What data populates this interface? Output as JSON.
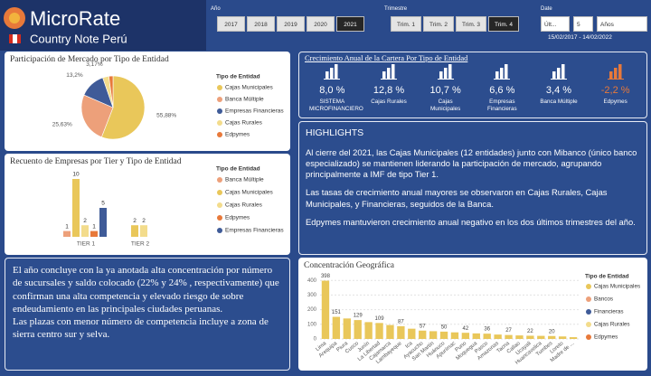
{
  "header": {
    "brand": "MicroRate",
    "subtitle": "Country Note Perú"
  },
  "filters": {
    "year_label": "Año",
    "years": [
      "2017",
      "2018",
      "2019",
      "2020",
      "2021"
    ],
    "year_selected": 4,
    "quarter_label": "Trimestre",
    "quarters": [
      "Trim. 1",
      "Trim. 2",
      "Trim. 3",
      "Trim. 4"
    ],
    "quarter_selected": 3,
    "date_label": "Date",
    "date_mode": "Últ...",
    "date_count": "5",
    "date_unit": "Años",
    "date_range": "15/02/2017 - 14/02/2022"
  },
  "growth": {
    "title": "Crecimiento Anual de la Cartera Por Tipo de Entidad",
    "items": [
      {
        "value": "8,0 %",
        "label": "SISTEMA MICROFINANCIERO",
        "color": "#ffffff"
      },
      {
        "value": "12,8 %",
        "label": "Cajas Rurales",
        "color": "#ffffff"
      },
      {
        "value": "10,7 %",
        "label": "Cajas Municipales",
        "color": "#ffffff"
      },
      {
        "value": "6,6 %",
        "label": "Empresas Financieras",
        "color": "#ffffff"
      },
      {
        "value": "3,4 %",
        "label": "Banca Múltiple",
        "color": "#ffffff"
      },
      {
        "value": "-2,2 %",
        "label": "Edpymes",
        "color": "#e8793a"
      }
    ]
  },
  "highlights": {
    "title": "HIGHLIGHTS",
    "paragraphs": [
      "Al cierre del 2021, las Cajas Municipales (12 entidades) junto con Mibanco (único banco especializado) se mantienen liderando la participación de mercado, agrupando principalmente a IMF de tipo Tier 1.",
      "Las tasas de crecimiento anual mayores se observaron en Cajas Rurales, Cajas Municipales, y Financieras, seguidos de la Banca.",
      "Edpymes mantuvieron crecimiento anual negativo en los dos últimos trimestres del año."
    ]
  },
  "note": {
    "paragraphs": [
      "El año concluye con la ya anotada alta concentración por número de sucursales y saldo colocado (22% y 24% , respectivamente) que confirman una alta competencia y elevado riesgo de sobre endeudamiento en las principales ciudades peruanas.",
      "Las plazas con menor número de competencia incluye a zona de sierra centro sur y selva."
    ]
  },
  "chart_data": [
    {
      "type": "pie",
      "title": "Participación de Mercado por Tipo de Entidad",
      "legend_title": "Tipo de Entidad",
      "categories": [
        "Cajas Municipales",
        "Banca Múltiple",
        "Empresas Financieras",
        "Cajas Rurales",
        "Edpymes"
      ],
      "values": [
        55.88,
        25.63,
        13.2,
        3.17,
        2.12
      ],
      "value_labels": [
        "55,88%",
        "25,63%",
        "13,2%",
        "3,17%",
        null
      ],
      "colors": [
        "#e9c75a",
        "#eda07a",
        "#3f5b98",
        "#f3dc8c",
        "#e8793a"
      ]
    },
    {
      "type": "grouped-bar",
      "title": "Recuento de Empresas por Tier y Tipo de Entidad",
      "legend_title": "Tipo de Entidad",
      "categories": [
        "TIER 1",
        "TIER 2"
      ],
      "series": [
        {
          "name": "Banca Múltiple",
          "color": "#eda07a",
          "values": [
            1,
            null
          ]
        },
        {
          "name": "Cajas Municipales",
          "color": "#e9c75a",
          "values": [
            10,
            2
          ]
        },
        {
          "name": "Cajas Rurales",
          "color": "#f3dc8c",
          "values": [
            2,
            2
          ]
        },
        {
          "name": "Edpymes",
          "color": "#e8793a",
          "values": [
            1,
            null
          ]
        },
        {
          "name": "Empresas Financieras",
          "color": "#3f5b98",
          "values": [
            5,
            null
          ]
        }
      ]
    },
    {
      "type": "bar",
      "title": "Concentración Geográfica",
      "legend_title": "Tipo de Entidad",
      "categories": [
        "Lima",
        "Arequipa",
        "Piura",
        "Cusco",
        "Junín",
        "La Libertad",
        "Cajamarca",
        "Lambayeque",
        "Ica",
        "Ayacucho",
        "San Martín",
        "Huánuco",
        "Apurímac",
        "Puno",
        "Moquegua",
        "Pasco",
        "Amazonas",
        "Tacna",
        "Callao",
        "Ucayali",
        "Huancavelica",
        "Tumbes",
        "Loreto",
        "Madre de ..."
      ],
      "values": [
        398,
        151,
        140,
        129,
        115,
        109,
        95,
        87,
        70,
        57,
        53,
        50,
        45,
        42,
        38,
        36,
        30,
        27,
        24,
        22,
        21,
        20,
        17,
        12
      ],
      "labeled": [
        true,
        true,
        false,
        true,
        false,
        true,
        false,
        true,
        false,
        true,
        false,
        true,
        false,
        true,
        false,
        true,
        false,
        true,
        false,
        true,
        false,
        true,
        false,
        false
      ],
      "color": "#e9c75a",
      "ylim": [
        0,
        420
      ],
      "yticks": [
        0,
        100,
        200,
        300,
        400
      ],
      "grid": true,
      "legend": [
        {
          "name": "Cajas Municipales",
          "color": "#e9c75a"
        },
        {
          "name": "Bancos",
          "color": "#eda07a"
        },
        {
          "name": "Financieras",
          "color": "#3f5b98"
        },
        {
          "name": "Cajas Rurales",
          "color": "#f3dc8c"
        },
        {
          "name": "Edpymes",
          "color": "#e8793a"
        }
      ]
    }
  ]
}
